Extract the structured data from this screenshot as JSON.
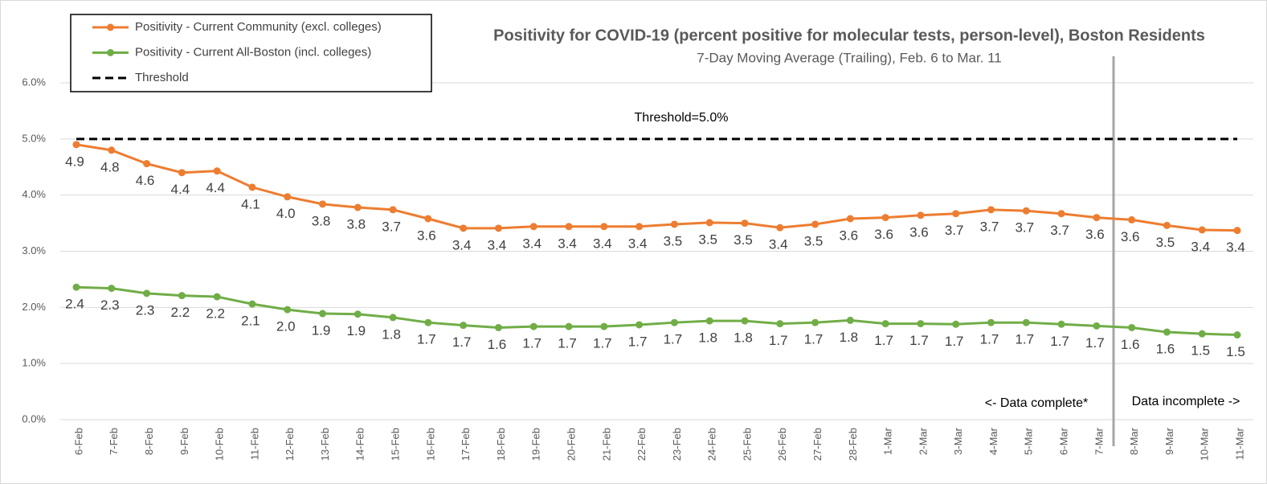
{
  "chart_data": {
    "type": "line",
    "title": "Positivity for COVID-19 (percent positive for molecular tests, person-level), Boston Residents",
    "subtitle": "7-Day Moving Average (Trailing), Feb. 6 to Mar. 11",
    "annotations": [
      "Threshold=5.0%",
      "<- Data complete*",
      "Data incomplete ->"
    ],
    "categories": [
      "6-Feb",
      "7-Feb",
      "8-Feb",
      "9-Feb",
      "10-Feb",
      "11-Feb",
      "12-Feb",
      "13-Feb",
      "14-Feb",
      "15-Feb",
      "16-Feb",
      "17-Feb",
      "18-Feb",
      "19-Feb",
      "20-Feb",
      "21-Feb",
      "22-Feb",
      "23-Feb",
      "24-Feb",
      "25-Feb",
      "26-Feb",
      "27-Feb",
      "28-Feb",
      "1-Mar",
      "2-Mar",
      "3-Mar",
      "4-Mar",
      "5-Mar",
      "6-Mar",
      "7-Mar",
      "8-Mar",
      "9-Mar",
      "10-Mar",
      "11-Mar"
    ],
    "series": [
      {
        "name": "Positivity - Current Community (excl. colleges)",
        "color": "#ed7d31",
        "dashed": false,
        "values": [
          4.9,
          4.8,
          4.56,
          4.4,
          4.43,
          4.14,
          3.97,
          3.84,
          3.78,
          3.74,
          3.58,
          3.41,
          3.41,
          3.44,
          3.44,
          3.44,
          3.44,
          3.48,
          3.51,
          3.5,
          3.42,
          3.48,
          3.58,
          3.6,
          3.64,
          3.67,
          3.74,
          3.72,
          3.67,
          3.6,
          3.56,
          3.46,
          3.38,
          3.37
        ],
        "value_labels": [
          "4.9",
          "4.8",
          "4.6",
          "4.4",
          "4.4",
          "4.1",
          "4.0",
          "3.8",
          "3.8",
          "3.7",
          "3.6",
          "3.4",
          "3.4",
          "3.4",
          "3.4",
          "3.4",
          "3.4",
          "3.5",
          "3.5",
          "3.5",
          "3.4",
          "3.5",
          "3.6",
          "3.6",
          "3.6",
          "3.7",
          "3.7",
          "3.7",
          "3.7",
          "3.6",
          "3.6",
          "3.5",
          "3.4",
          "3.4"
        ]
      },
      {
        "name": "Positivity - Current All-Boston (incl. colleges)",
        "color": "#70ad47",
        "dashed": false,
        "values": [
          2.36,
          2.34,
          2.25,
          2.21,
          2.19,
          2.06,
          1.96,
          1.89,
          1.88,
          1.82,
          1.73,
          1.68,
          1.64,
          1.66,
          1.66,
          1.66,
          1.69,
          1.73,
          1.76,
          1.76,
          1.71,
          1.73,
          1.77,
          1.71,
          1.71,
          1.7,
          1.73,
          1.73,
          1.7,
          1.67,
          1.64,
          1.56,
          1.53,
          1.51
        ],
        "value_labels": [
          "2.4",
          "2.3",
          "2.3",
          "2.2",
          "2.2",
          "2.1",
          "2.0",
          "1.9",
          "1.9",
          "1.8",
          "1.7",
          "1.7",
          "1.6",
          "1.7",
          "1.7",
          "1.7",
          "1.7",
          "1.7",
          "1.8",
          "1.8",
          "1.7",
          "1.7",
          "1.8",
          "1.7",
          "1.7",
          "1.7",
          "1.7",
          "1.7",
          "1.7",
          "1.7",
          "1.6",
          "1.6",
          "1.5",
          "1.5"
        ]
      },
      {
        "name": "Threshold",
        "color": "#000000",
        "dashed": true,
        "values": [
          5,
          5,
          5,
          5,
          5,
          5,
          5,
          5,
          5,
          5,
          5,
          5,
          5,
          5,
          5,
          5,
          5,
          5,
          5,
          5,
          5,
          5,
          5,
          5,
          5,
          5,
          5,
          5,
          5,
          5,
          5,
          5,
          5,
          5
        ]
      }
    ],
    "ylim": [
      0,
      6
    ],
    "yticks": [
      {
        "value": 0,
        "label": "0.0%"
      },
      {
        "value": 1,
        "label": "1.0%"
      },
      {
        "value": 2,
        "label": "2.0%"
      },
      {
        "value": 3,
        "label": "3.0%"
      },
      {
        "value": 4,
        "label": "4.0%"
      },
      {
        "value": 5,
        "label": "5.0%"
      },
      {
        "value": 6,
        "label": "6.0%"
      }
    ],
    "grid": true,
    "legend": "top-left"
  }
}
